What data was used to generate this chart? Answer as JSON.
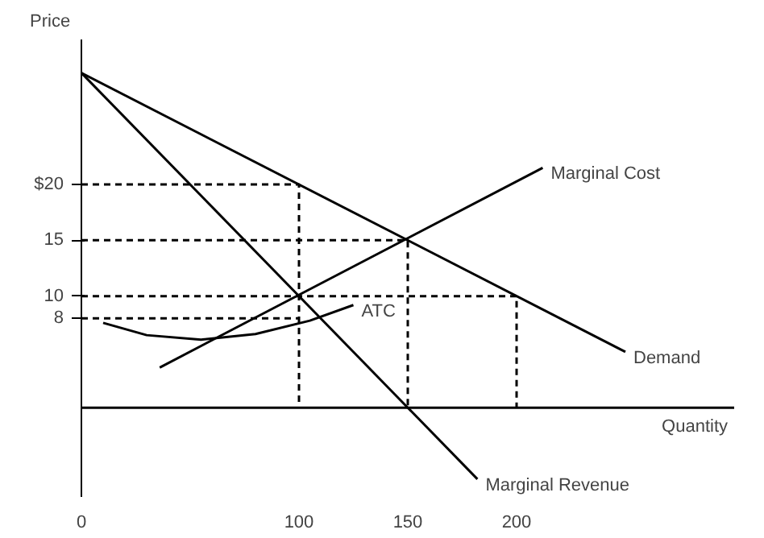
{
  "chart_data": {
    "type": "line",
    "xlabel": "Quantity",
    "ylabel": "Price",
    "xlim": [
      0,
      300
    ],
    "ylim": [
      -8,
      33
    ],
    "xticks": [
      {
        "value": 0,
        "label": "0"
      },
      100,
      150,
      200
    ],
    "yticks": [
      8,
      10,
      15,
      {
        "value": 20,
        "label": "$20"
      }
    ],
    "grid": false,
    "marker": "none",
    "ref_lines": [
      {
        "axis": "y",
        "value": 0,
        "color": "#000000",
        "line_style": "solid"
      }
    ],
    "series": [
      {
        "name": "Demand",
        "color": "#000000",
        "line_style": "solid",
        "x": [
          0,
          250
        ],
        "values": [
          30,
          5
        ]
      },
      {
        "name": "Marginal Revenue",
        "color": "#000000",
        "line_style": "solid",
        "x": [
          0,
          182
        ],
        "values": [
          30,
          -6.4
        ]
      },
      {
        "name": "Marginal Cost",
        "color": "#000000",
        "line_style": "solid",
        "x": [
          36,
          212
        ],
        "values": [
          3.6,
          21.5
        ]
      },
      {
        "name": "ATC",
        "color": "#000000",
        "line_style": "solid",
        "x": [
          10,
          30,
          55,
          80,
          105,
          125
        ],
        "values": [
          7.6,
          6.5,
          6.1,
          6.6,
          7.8,
          9.2
        ]
      },
      {
        "color": "#000000",
        "line_style": "dashed",
        "x": [
          0,
          100,
          100
        ],
        "values": [
          20,
          20,
          0
        ]
      },
      {
        "color": "#000000",
        "line_style": "dashed",
        "x": [
          0,
          150,
          150
        ],
        "values": [
          15,
          15,
          0
        ]
      },
      {
        "color": "#000000",
        "line_style": "dashed",
        "x": [
          0,
          200,
          200
        ],
        "values": [
          10,
          10,
          0
        ]
      },
      {
        "color": "#000000",
        "line_style": "dashed",
        "x": [
          0,
          100
        ],
        "values": [
          8,
          8
        ]
      }
    ]
  }
}
